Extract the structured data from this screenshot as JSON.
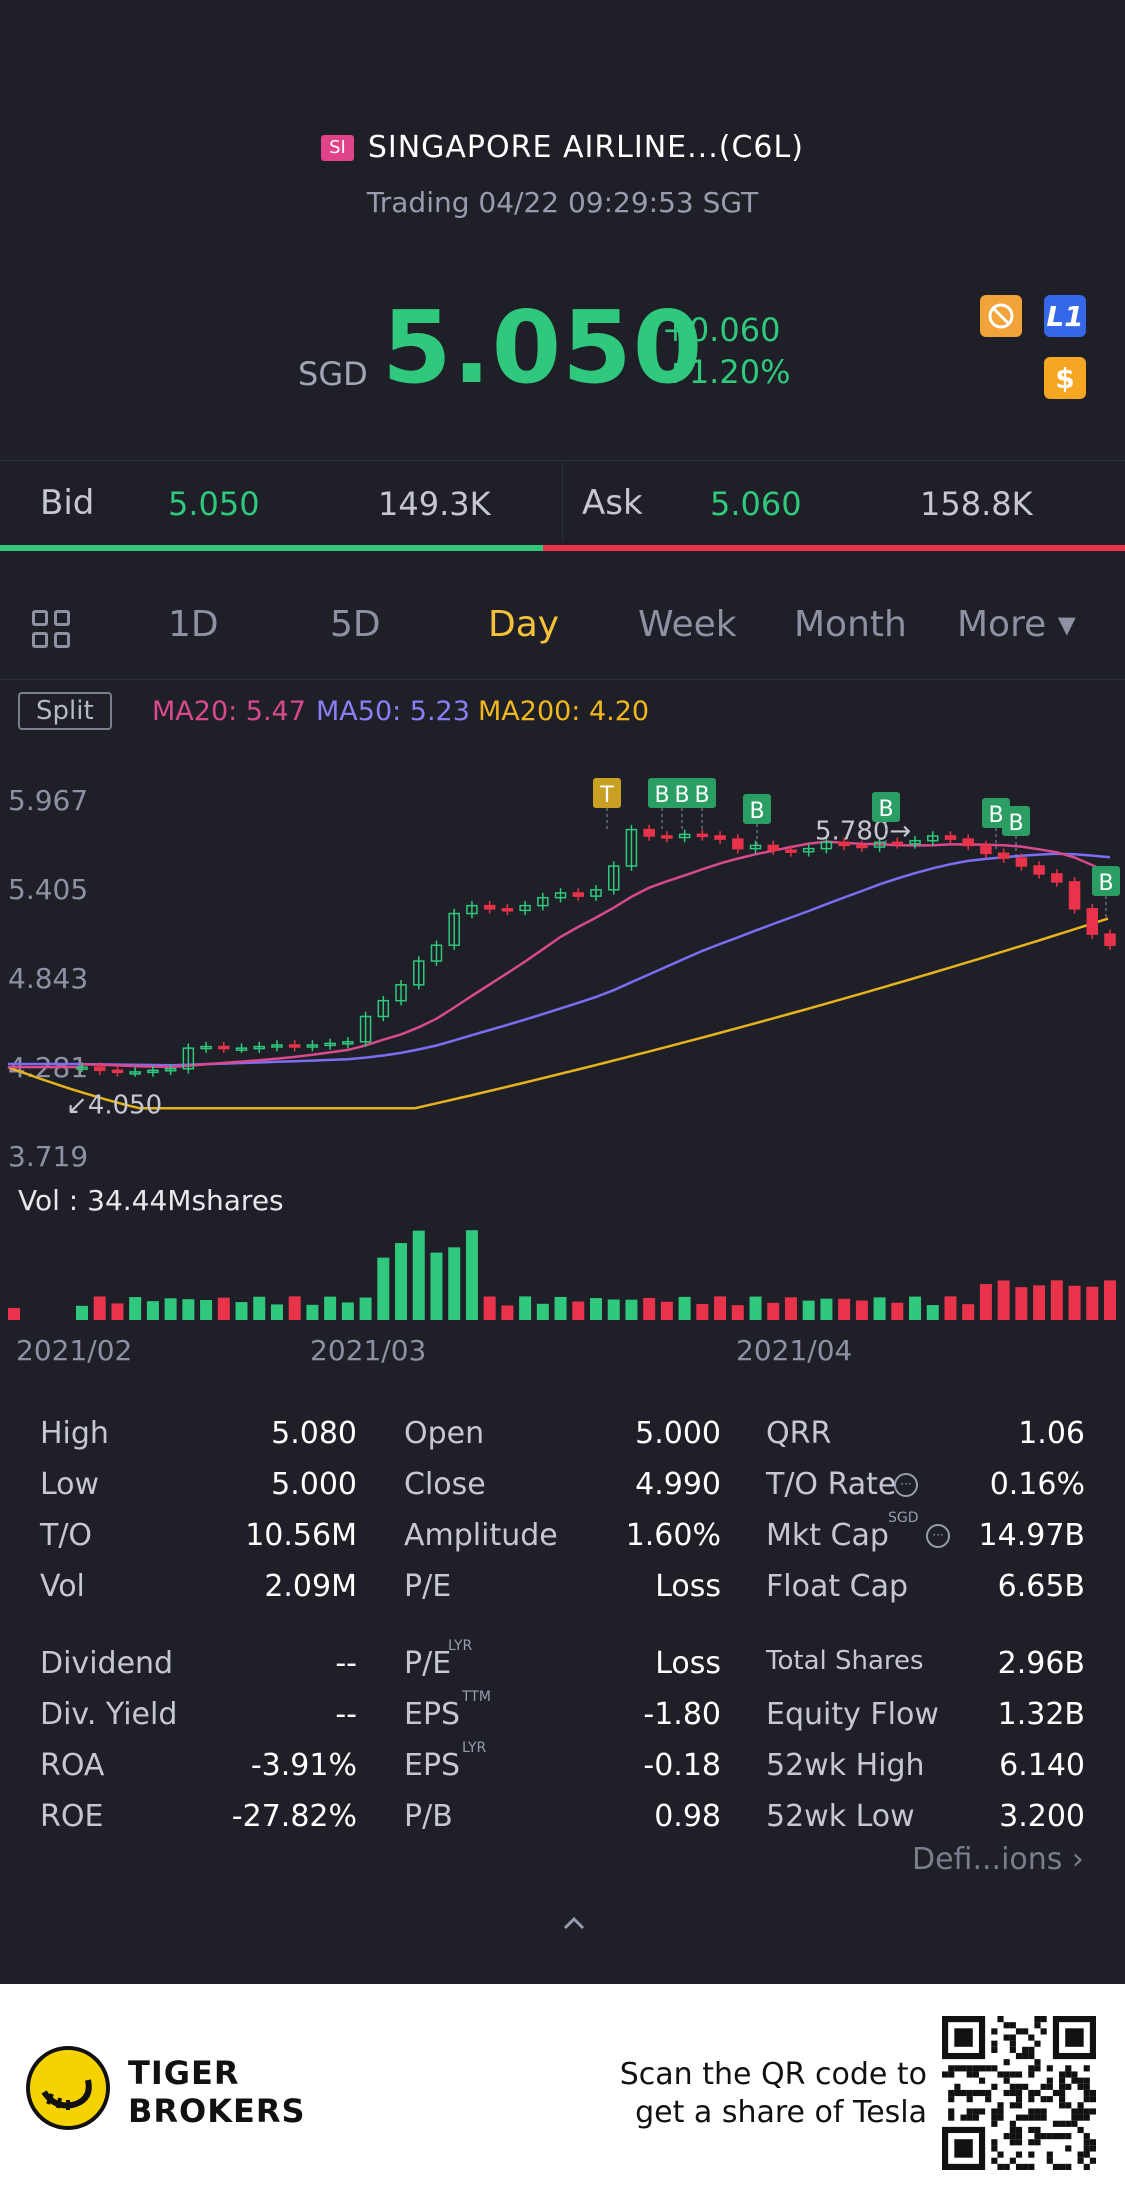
{
  "header": {
    "exchange_badge": "SI",
    "title": "SINGAPORE AIRLINE...(C6L)",
    "status": "Trading 04/22 09:29:53 SGT",
    "currency": "SGD",
    "price": "5.050",
    "change": "+0.060",
    "change_pct": "+1.20%",
    "icons": [
      "no-trade-icon",
      "level1-icon",
      "dollar-icon"
    ],
    "icon_glyphs": {
      "level1": "L1",
      "dollar": "$"
    }
  },
  "bidask": {
    "bid_label": "Bid",
    "bid_price": "5.050",
    "bid_qty": "149.3K",
    "ask_label": "Ask",
    "ask_price": "5.060",
    "ask_qty": "158.8K",
    "bid_share": 0.483
  },
  "tabs": {
    "items": [
      "1D",
      "5D",
      "Day",
      "Week",
      "Month",
      "More ▾"
    ],
    "active": "Day"
  },
  "ma": {
    "split_label": "Split",
    "ma20": "MA20: 5.47",
    "ma50": "MA50: 5.23",
    "ma200": "MA200: 4.20",
    "colors": {
      "ma20": "#d94a8c",
      "ma50": "#7b6ef5",
      "ma200": "#e8b21e",
      "up": "#2fc87d",
      "down": "#e8334a"
    }
  },
  "chart_data": {
    "type": "candlestick",
    "y_ticks": [
      "5.967",
      "5.405",
      "4.843",
      "4.281",
      "3.719"
    ],
    "ylim": [
      3.719,
      5.967
    ],
    "x_ticks": [
      "2021/02",
      "2021/03",
      "2021/04"
    ],
    "annotations": {
      "high_label": "5.780",
      "low_label": "4.050"
    },
    "markers": [
      "T",
      "B",
      "B",
      "B",
      "B",
      "B",
      "B",
      "B",
      "B"
    ],
    "closes": [
      4.28,
      4.26,
      4.25,
      4.25,
      4.26,
      4.27,
      4.4,
      4.41,
      4.4,
      4.4,
      4.41,
      4.42,
      4.41,
      4.42,
      4.43,
      4.44,
      4.6,
      4.7,
      4.8,
      4.95,
      5.05,
      5.25,
      5.3,
      5.28,
      5.27,
      5.3,
      5.35,
      5.38,
      5.36,
      5.4,
      5.55,
      5.78,
      5.74,
      5.73,
      5.75,
      5.74,
      5.72,
      5.66,
      5.68,
      5.65,
      5.64,
      5.66,
      5.7,
      5.68,
      5.67,
      5.7,
      5.69,
      5.71,
      5.74,
      5.72,
      5.68,
      5.63,
      5.6,
      5.55,
      5.5,
      5.45,
      5.28,
      5.12,
      5.05
    ],
    "vol_label": "Vol  : 34.44Mshares"
  },
  "stats": {
    "col1": [
      {
        "label": "High",
        "value": "5.080"
      },
      {
        "label": "Low",
        "value": "5.000"
      },
      {
        "label": "T/O",
        "value": "10.56M"
      },
      {
        "label": "Vol",
        "value": "2.09M"
      },
      {
        "label": "Dividend",
        "value": "--"
      },
      {
        "label": "Div. Yield",
        "value": "--"
      },
      {
        "label": "ROA",
        "value": "-3.91%"
      },
      {
        "label": "ROE",
        "value": "-27.82%"
      }
    ],
    "col2": [
      {
        "label": "Open",
        "value": "5.000"
      },
      {
        "label": "Close",
        "value": "4.990"
      },
      {
        "label": "Amplitude",
        "value": "1.60%"
      },
      {
        "label": "P/E",
        "value": "Loss"
      },
      {
        "label": "P/E",
        "value": "Loss",
        "sup": "LYR"
      },
      {
        "label": "EPS",
        "value": "-1.80",
        "sup": "TTM"
      },
      {
        "label": "EPS",
        "value": "-0.18",
        "sup": "LYR"
      },
      {
        "label": "P/B",
        "value": "0.98"
      }
    ],
    "col3": [
      {
        "label": "QRR",
        "value": "1.06"
      },
      {
        "label": "T/O Rate",
        "value": "0.16%"
      },
      {
        "label": "Mkt Cap",
        "value": "14.97B",
        "sup": "SGD"
      },
      {
        "label": "Float Cap",
        "value": "6.65B"
      },
      {
        "label": "Total Shares",
        "value": "2.96B"
      },
      {
        "label": "Equity Flow",
        "value": "1.32B"
      },
      {
        "label": "52wk High",
        "value": "6.140"
      },
      {
        "label": "52wk Low",
        "value": "3.200"
      }
    ],
    "definitions": "Defi...ions  ›"
  },
  "footer": {
    "brand": "TIGER",
    "brand2": "BROKERS",
    "cta_line1": "Scan the QR code to",
    "cta_line2": "get a share of Tesla"
  }
}
